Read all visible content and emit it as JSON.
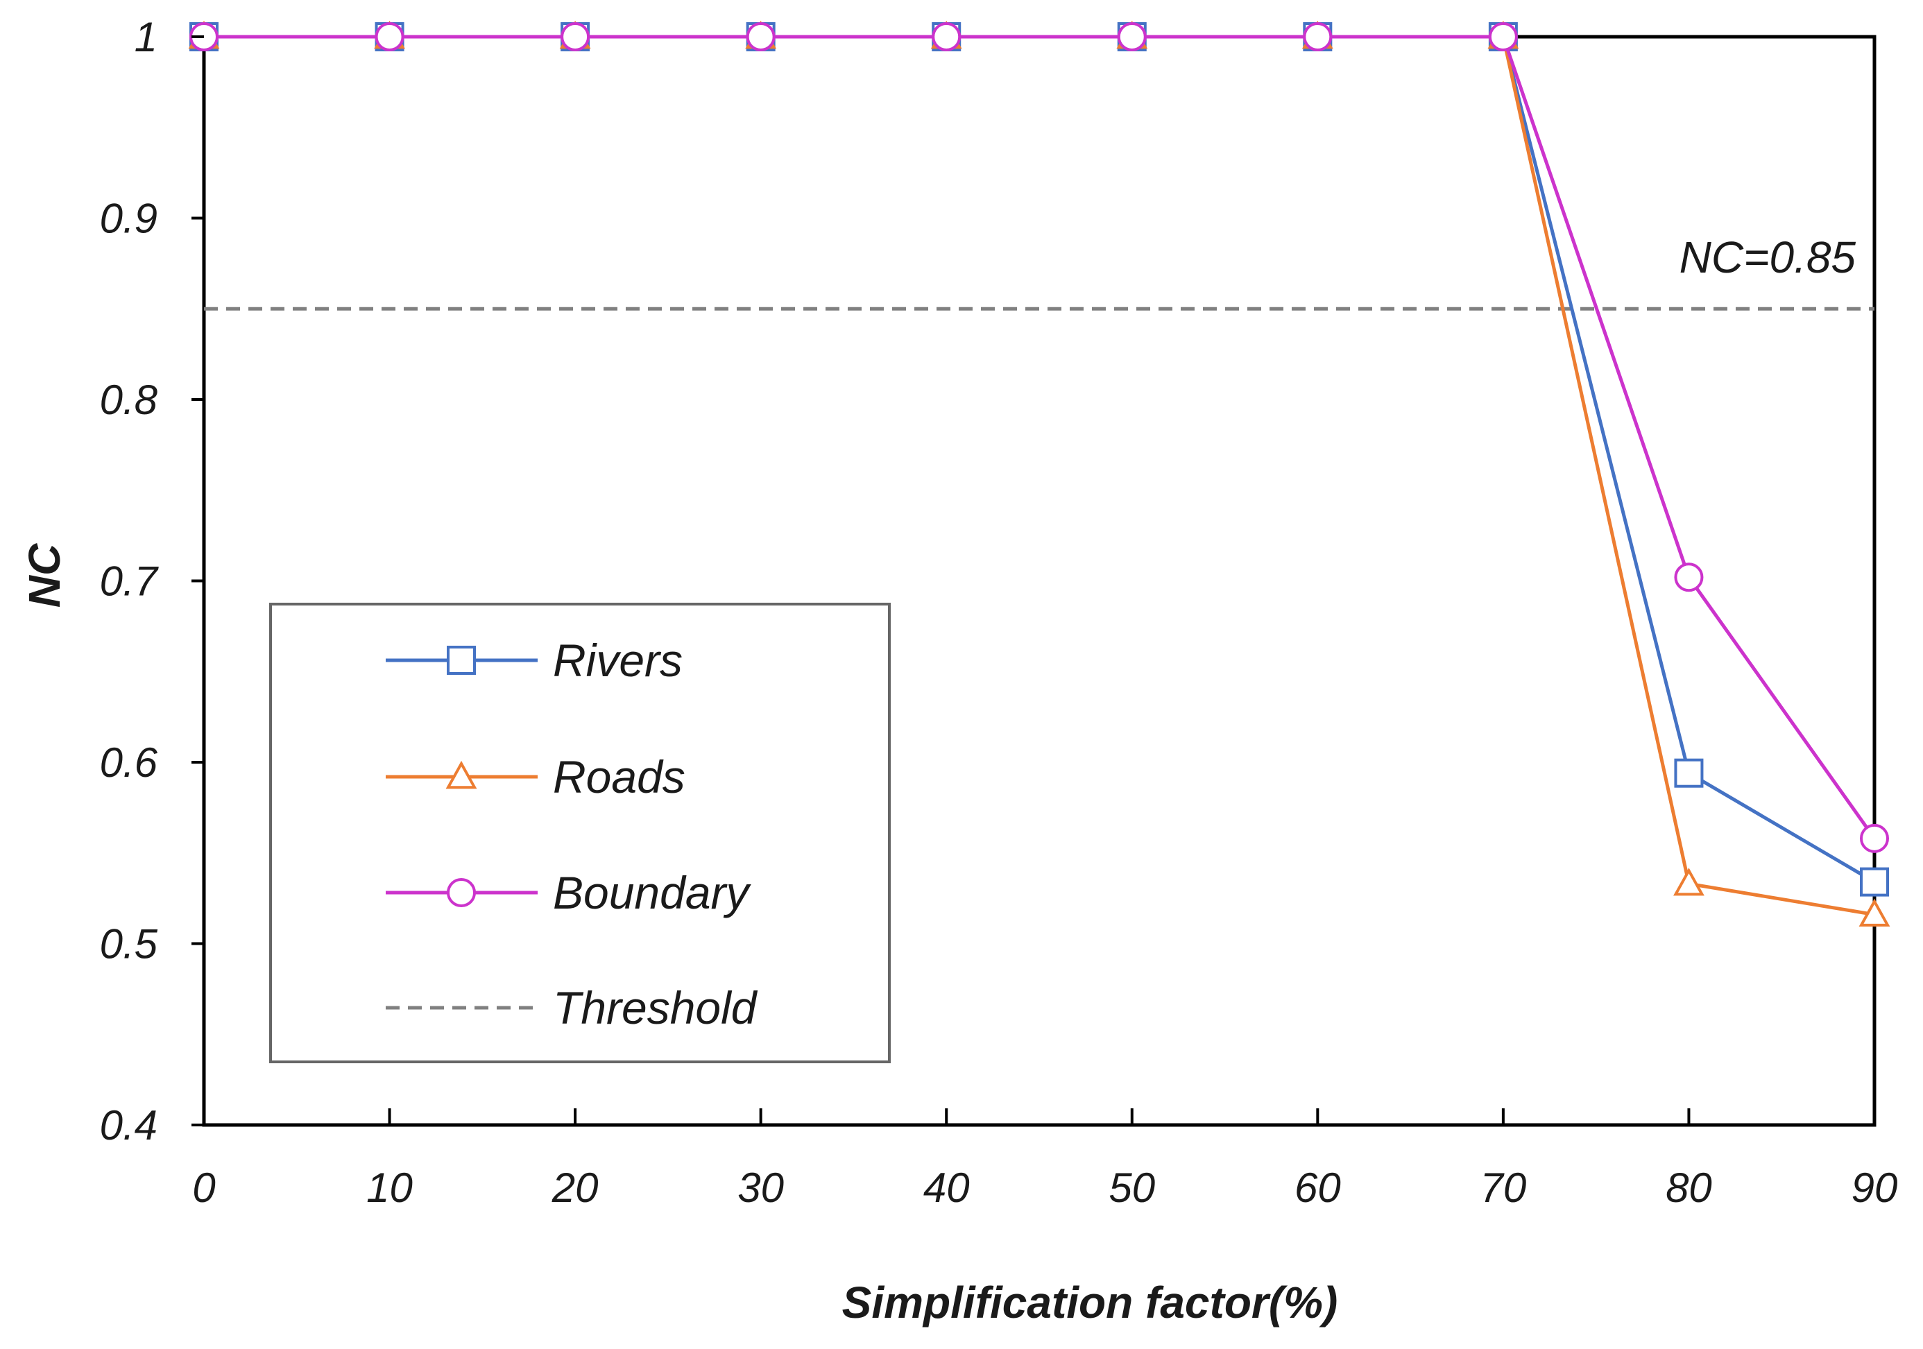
{
  "chart_data": {
    "type": "line",
    "title": "",
    "xlabel": "Simplification factor(%)",
    "ylabel": "NC",
    "x": [
      0,
      10,
      20,
      30,
      40,
      50,
      60,
      70,
      80,
      90
    ],
    "xlim": [
      0,
      90
    ],
    "ylim": [
      0.4,
      1
    ],
    "x_ticks": [
      "0",
      "10",
      "20",
      "30",
      "40",
      "50",
      "60",
      "70",
      "80",
      "90"
    ],
    "y_ticks": [
      "0.4",
      "0.5",
      "0.6",
      "0.7",
      "0.8",
      "0.9",
      "1"
    ],
    "grid": false,
    "legend_position": "bottom-left",
    "series": [
      {
        "name": "Rivers",
        "color": "#4472c4",
        "marker": "square",
        "values": [
          1,
          1,
          1,
          1,
          1,
          1,
          1,
          1,
          0.594,
          0.534
        ]
      },
      {
        "name": "Roads",
        "color": "#ed7d31",
        "marker": "triangle",
        "values": [
          1,
          1,
          1,
          1,
          1,
          1,
          1,
          1,
          0.533,
          0.516
        ]
      },
      {
        "name": "Boundary",
        "color": "#cc33cc",
        "marker": "circle",
        "values": [
          1,
          1,
          1,
          1,
          1,
          1,
          1,
          1,
          0.702,
          0.558
        ]
      }
    ],
    "threshold": {
      "name": "Threshold",
      "value": 0.85,
      "label": "NC=0.85",
      "color": "#808080"
    }
  }
}
